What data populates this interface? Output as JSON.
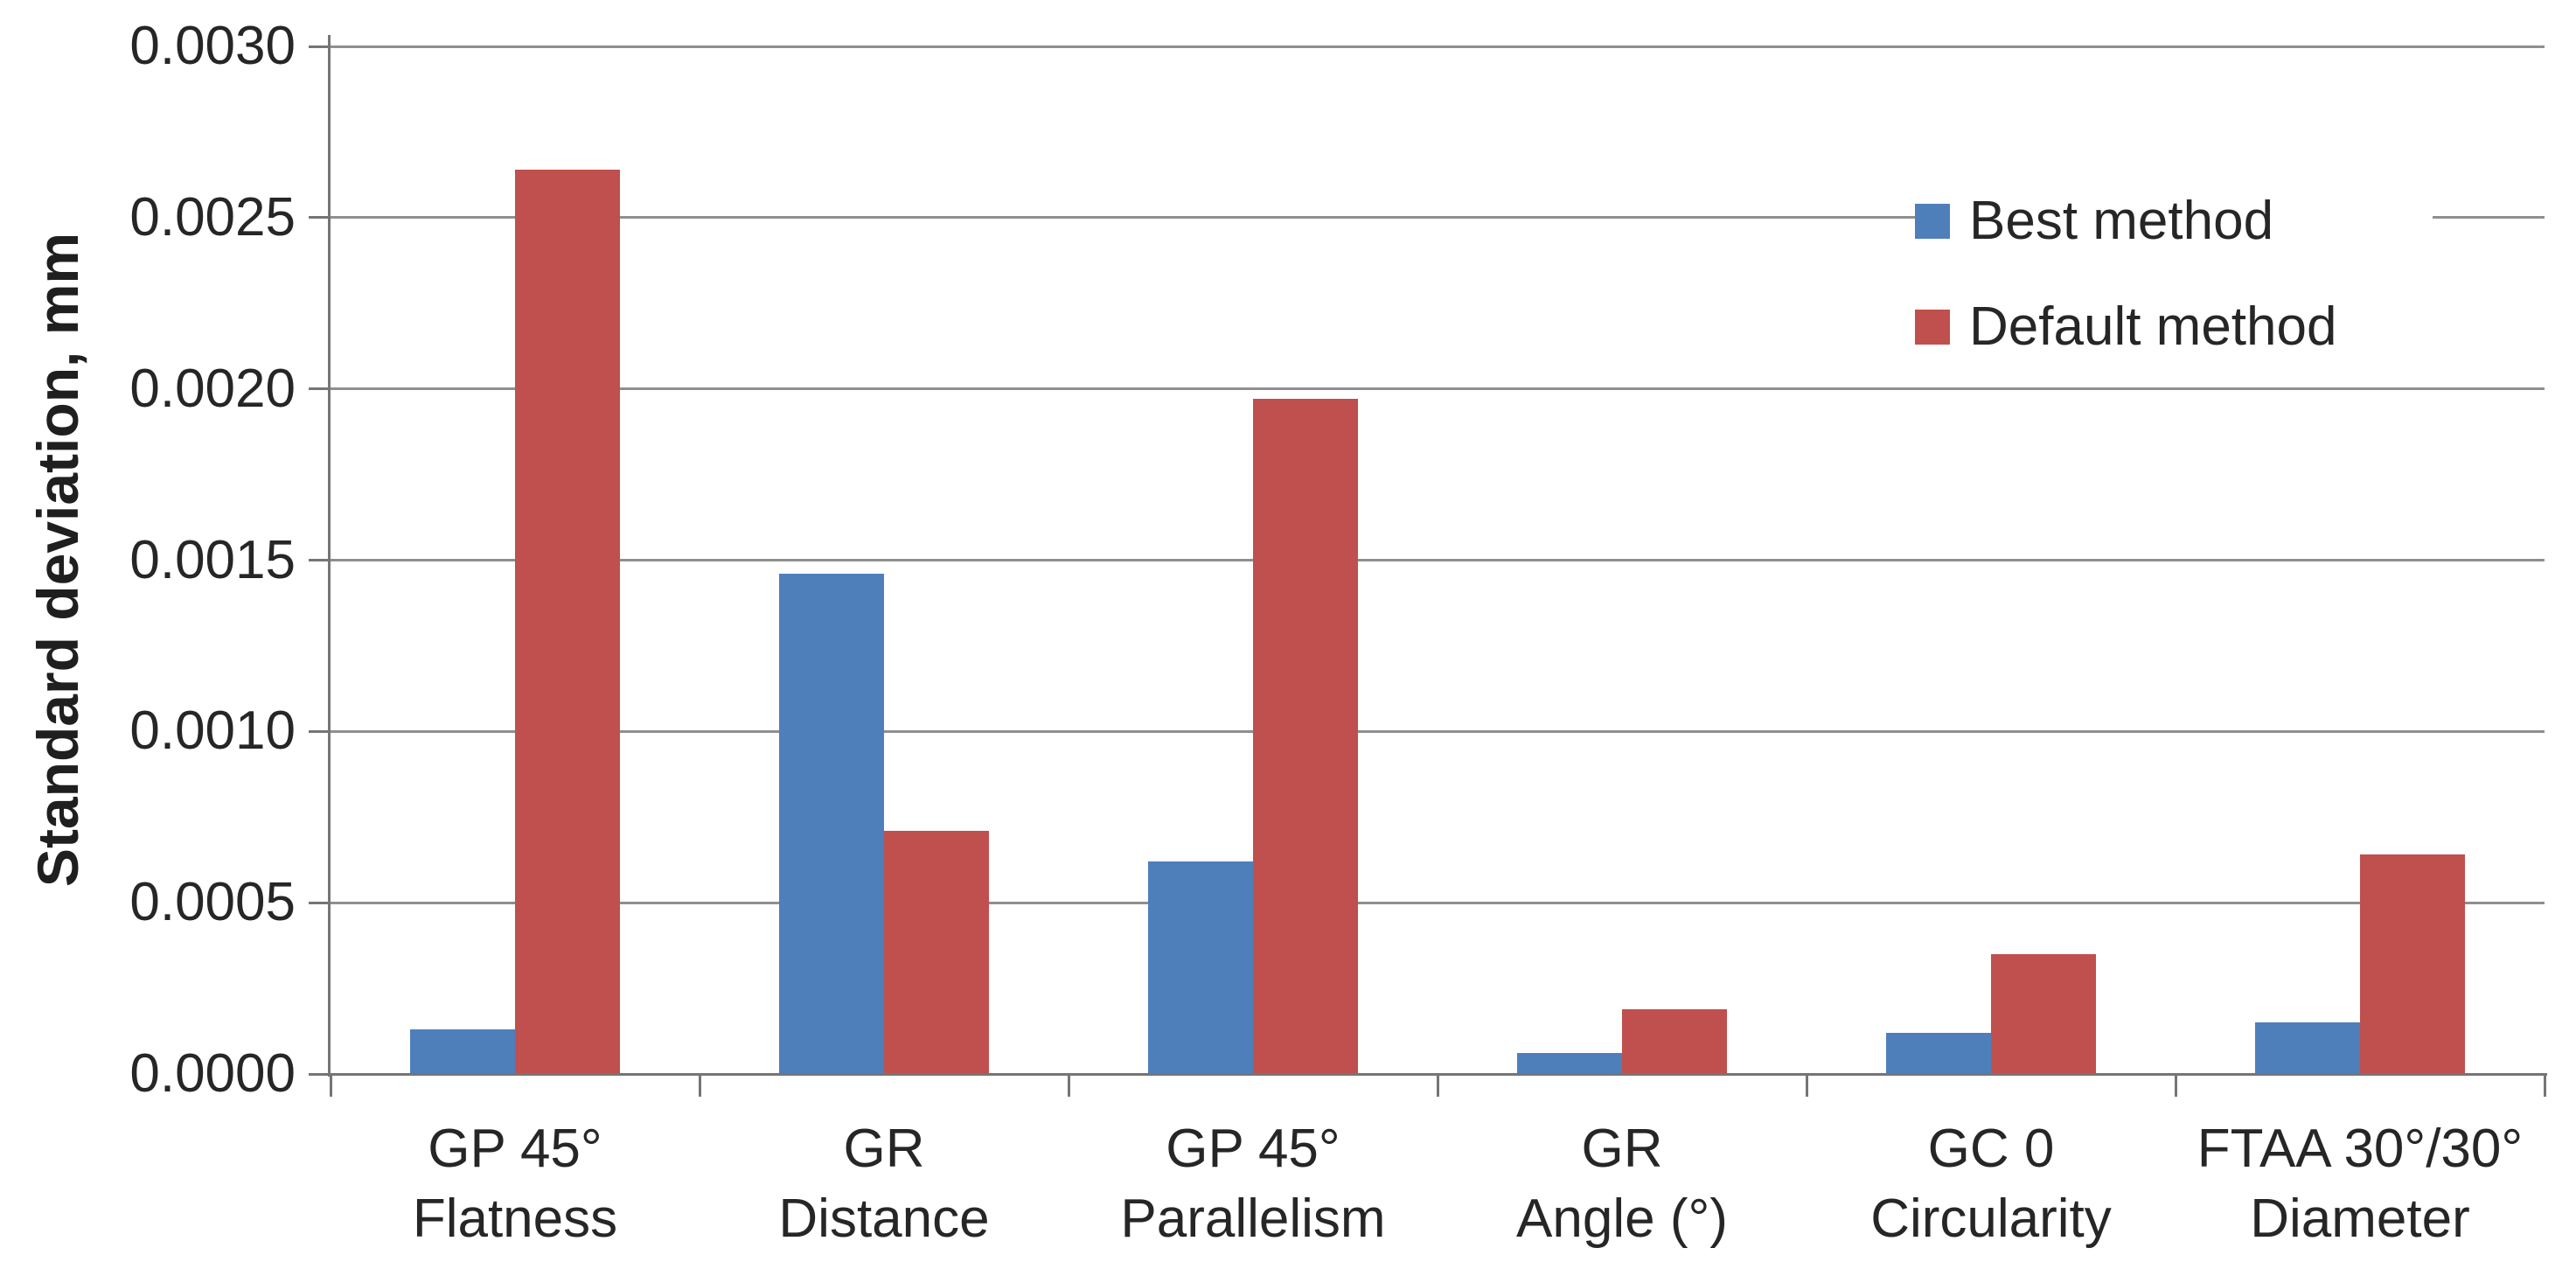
{
  "chart_data": {
    "type": "bar",
    "title": "",
    "ylabel": "Standard deviation, mm",
    "xlabel": "",
    "categories": [
      [
        "GP 45°",
        "Flatness"
      ],
      [
        "GR",
        "Distance"
      ],
      [
        "GP 45°",
        "Parallelism"
      ],
      [
        "GR",
        "Angle (°)"
      ],
      [
        "GC 0",
        "Circularity"
      ],
      [
        "FTAA 30°/30°",
        "Diameter"
      ]
    ],
    "series": [
      {
        "name": "Best method",
        "color": "#4E7FBB",
        "values": [
          0.00013,
          0.00146,
          0.00062,
          6e-05,
          0.00012,
          0.00015
        ]
      },
      {
        "name": "Default method",
        "color": "#C0504D",
        "values": [
          0.00264,
          0.00071,
          0.00197,
          0.00019,
          0.00035,
          0.00064
        ]
      }
    ],
    "ylim": [
      0.0,
      0.003
    ],
    "ytick_step": 0.0005,
    "ytick_labels": [
      "0.0000",
      "0.0005",
      "0.0010",
      "0.0015",
      "0.0020",
      "0.0025",
      "0.0030"
    ],
    "grid": true,
    "legend_position": "upper-right",
    "grid_color": "#8f8f8f",
    "axis_color": "#757575",
    "text_color": "#262626"
  }
}
